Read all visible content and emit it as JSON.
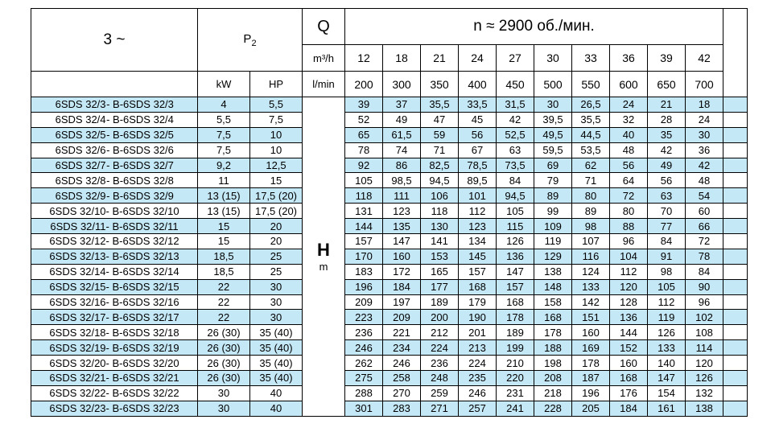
{
  "colors": {
    "stripe": "#c5e8f6",
    "border": "#000000",
    "page_background": "#ffffff"
  },
  "table": {
    "header": {
      "phase": "3 ~",
      "p2_label": "P",
      "p2_sub": "2",
      "q_label": "Q",
      "q_unit_top": "m³/h",
      "q_unit_bottom": "l/min",
      "kw_label": "kW",
      "hp_label": "HP",
      "speed": "n ≈ 2900 об./мин.",
      "flow_m3h": [
        "12",
        "18",
        "21",
        "24",
        "27",
        "30",
        "33",
        "36",
        "39",
        "42"
      ],
      "flow_lmin": [
        "200",
        "300",
        "350",
        "400",
        "450",
        "500",
        "550",
        "600",
        "650",
        "700"
      ]
    },
    "h_column": {
      "symbol": "H",
      "unit": "m"
    },
    "rows": [
      {
        "model": "6SDS 32/3",
        "model_b": "- B-6SDS 32/3",
        "kw": "4",
        "hp": "5,5",
        "values": [
          "39",
          "37",
          "35,5",
          "33,5",
          "31,5",
          "30",
          "26,5",
          "24",
          "21",
          "18"
        ]
      },
      {
        "model": "6SDS 32/4",
        "model_b": "- B-6SDS 32/4",
        "kw": "5,5",
        "hp": "7,5",
        "values": [
          "52",
          "49",
          "47",
          "45",
          "42",
          "39,5",
          "35,5",
          "32",
          "28",
          "24"
        ]
      },
      {
        "model": "6SDS 32/5",
        "model_b": "- B-6SDS 32/5",
        "kw": "7,5",
        "hp": "10",
        "values": [
          "65",
          "61,5",
          "59",
          "56",
          "52,5",
          "49,5",
          "44,5",
          "40",
          "35",
          "30"
        ]
      },
      {
        "model": "6SDS 32/6",
        "model_b": "- B-6SDS 32/6",
        "kw": "7,5",
        "hp": "10",
        "values": [
          "78",
          "74",
          "71",
          "67",
          "63",
          "59,5",
          "53,5",
          "48",
          "42",
          "36"
        ]
      },
      {
        "model": "6SDS 32/7",
        "model_b": "- B-6SDS 32/7",
        "kw": "9,2",
        "hp": "12,5",
        "values": [
          "92",
          "86",
          "82,5",
          "78,5",
          "73,5",
          "69",
          "62",
          "56",
          "49",
          "42"
        ]
      },
      {
        "model": "6SDS 32/8",
        "model_b": "- B-6SDS 32/8",
        "kw": "11",
        "hp": "15",
        "values": [
          "105",
          "98,5",
          "94,5",
          "89,5",
          "84",
          "79",
          "71",
          "64",
          "56",
          "48"
        ]
      },
      {
        "model": "6SDS 32/9",
        "model_b": "- B-6SDS 32/9",
        "kw": "13 (15)",
        "hp": "17,5 (20)",
        "values": [
          "118",
          "111",
          "106",
          "101",
          "94,5",
          "89",
          "80",
          "72",
          "63",
          "54"
        ]
      },
      {
        "model": "6SDS 32/10",
        "model_b": "- B-6SDS 32/10",
        "kw": "13 (15)",
        "hp": "17,5 (20)",
        "values": [
          "131",
          "123",
          "118",
          "112",
          "105",
          "99",
          "89",
          "80",
          "70",
          "60"
        ]
      },
      {
        "model": "6SDS 32/11",
        "model_b": "- B-6SDS 32/11",
        "kw": "15",
        "hp": "20",
        "values": [
          "144",
          "135",
          "130",
          "123",
          "115",
          "109",
          "98",
          "88",
          "77",
          "66"
        ]
      },
      {
        "model": "6SDS 32/12",
        "model_b": "- B-6SDS 32/12",
        "kw": "15",
        "hp": "20",
        "values": [
          "157",
          "147",
          "141",
          "134",
          "126",
          "119",
          "107",
          "96",
          "84",
          "72"
        ]
      },
      {
        "model": "6SDS 32/13",
        "model_b": "- B-6SDS 32/13",
        "kw": "18,5",
        "hp": "25",
        "values": [
          "170",
          "160",
          "153",
          "145",
          "136",
          "129",
          "116",
          "104",
          "91",
          "78"
        ]
      },
      {
        "model": "6SDS 32/14",
        "model_b": "- B-6SDS 32/14",
        "kw": "18,5",
        "hp": "25",
        "values": [
          "183",
          "172",
          "165",
          "157",
          "147",
          "138",
          "124",
          "112",
          "98",
          "84"
        ]
      },
      {
        "model": "6SDS 32/15",
        "model_b": "- B-6SDS 32/15",
        "kw": "22",
        "hp": "30",
        "values": [
          "196",
          "184",
          "177",
          "168",
          "157",
          "148",
          "133",
          "120",
          "105",
          "90"
        ]
      },
      {
        "model": "6SDS 32/16",
        "model_b": "- B-6SDS 32/16",
        "kw": "22",
        "hp": "30",
        "values": [
          "209",
          "197",
          "189",
          "179",
          "168",
          "158",
          "142",
          "128",
          "112",
          "96"
        ]
      },
      {
        "model": "6SDS 32/17",
        "model_b": "- B-6SDS 32/17",
        "kw": "22",
        "hp": "30",
        "values": [
          "223",
          "209",
          "200",
          "190",
          "178",
          "168",
          "151",
          "136",
          "119",
          "102"
        ]
      },
      {
        "model": "6SDS 32/18",
        "model_b": "- B-6SDS 32/18",
        "kw": "26 (30)",
        "hp": "35 (40)",
        "values": [
          "236",
          "221",
          "212",
          "201",
          "189",
          "178",
          "160",
          "144",
          "126",
          "108"
        ]
      },
      {
        "model": "6SDS 32/19",
        "model_b": "- B-6SDS 32/19",
        "kw": "26 (30)",
        "hp": "35 (40)",
        "values": [
          "246",
          "234",
          "224",
          "213",
          "199",
          "188",
          "169",
          "152",
          "133",
          "114"
        ]
      },
      {
        "model": "6SDS 32/20",
        "model_b": "- B-6SDS 32/20",
        "kw": "26 (30)",
        "hp": "35 (40)",
        "values": [
          "262",
          "246",
          "236",
          "224",
          "210",
          "198",
          "178",
          "160",
          "140",
          "120"
        ]
      },
      {
        "model": "6SDS 32/21",
        "model_b": "- B-6SDS 32/21",
        "kw": "26 (30)",
        "hp": "35 (40)",
        "values": [
          "275",
          "258",
          "248",
          "235",
          "220",
          "208",
          "187",
          "168",
          "147",
          "126"
        ]
      },
      {
        "model": "6SDS 32/22",
        "model_b": "- B-6SDS 32/22",
        "kw": "30",
        "hp": "40",
        "values": [
          "288",
          "270",
          "259",
          "246",
          "231",
          "218",
          "196",
          "176",
          "154",
          "132"
        ]
      },
      {
        "model": "6SDS 32/23",
        "model_b": "- B-6SDS 32/23",
        "kw": "30",
        "hp": "40",
        "values": [
          "301",
          "283",
          "271",
          "257",
          "241",
          "228",
          "205",
          "184",
          "161",
          "138"
        ]
      }
    ]
  }
}
